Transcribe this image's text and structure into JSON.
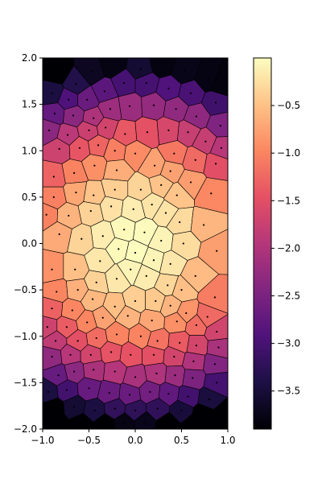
{
  "chart_data": {
    "type": "heatmap",
    "subtype": "voronoi",
    "title": "",
    "xlabel": "",
    "ylabel": "",
    "xlim": [
      -1,
      1
    ],
    "ylim": [
      -2,
      2
    ],
    "xticks": [
      "−1.0",
      "−0.5",
      "0.0",
      "0.5",
      "1.0"
    ],
    "xtick_values": [
      -1,
      -0.5,
      0,
      0.5,
      1
    ],
    "yticks": [
      "−2.0",
      "−1.5",
      "−1.0",
      "−0.5",
      "0.0",
      "0.5",
      "1.0",
      "1.5",
      "2.0"
    ],
    "ytick_values": [
      -2,
      -1.5,
      -1,
      -0.5,
      0,
      0.5,
      1,
      1.5,
      2
    ],
    "colorbar": {
      "colormap": "magma",
      "range": [
        -3.9,
        0
      ],
      "ticks": [
        "−3.5",
        "−3.0",
        "−2.5",
        "−2.0",
        "−1.5",
        "−1.0",
        "−0.5"
      ],
      "tick_values": [
        -3.5,
        -3,
        -2.5,
        -2,
        -1.5,
        -1,
        -0.5
      ]
    },
    "value_function": "-(x^2 + y^2)",
    "grid": false,
    "points": [
      [
        -0.85,
        1.85
      ],
      [
        -0.64,
        1.72
      ],
      [
        -0.47,
        1.86
      ],
      [
        -0.25,
        1.93
      ],
      [
        0.06,
        1.88
      ],
      [
        0.29,
        1.93
      ],
      [
        0.53,
        1.86
      ],
      [
        0.79,
        1.78
      ],
      [
        0.93,
        1.72
      ],
      [
        -0.9,
        1.62
      ],
      [
        -0.72,
        1.55
      ],
      [
        -0.52,
        1.55
      ],
      [
        -0.33,
        1.64
      ],
      [
        -0.12,
        1.73
      ],
      [
        0.12,
        1.73
      ],
      [
        0.36,
        1.67
      ],
      [
        0.6,
        1.62
      ],
      [
        0.87,
        1.52
      ],
      [
        -0.87,
        1.4
      ],
      [
        -0.67,
        1.38
      ],
      [
        -0.45,
        1.35
      ],
      [
        -0.27,
        1.45
      ],
      [
        -0.06,
        1.48
      ],
      [
        0.2,
        1.49
      ],
      [
        0.44,
        1.45
      ],
      [
        0.66,
        1.37
      ],
      [
        0.92,
        1.27
      ],
      [
        -0.93,
        1.22
      ],
      [
        -0.73,
        1.17
      ],
      [
        -0.5,
        1.22
      ],
      [
        -0.32,
        1.25
      ],
      [
        -0.11,
        1.18
      ],
      [
        0.13,
        1.2
      ],
      [
        0.36,
        1.22
      ],
      [
        0.57,
        1.2
      ],
      [
        0.76,
        1.1
      ],
      [
        0.93,
        1.03
      ],
      [
        -0.82,
        1.02
      ],
      [
        -0.6,
        1.03
      ],
      [
        -0.4,
        1.06
      ],
      [
        -0.22,
        1.0
      ],
      [
        0.0,
        0.97
      ],
      [
        0.21,
        0.84
      ],
      [
        0.42,
        0.97
      ],
      [
        0.65,
        0.9
      ],
      [
        0.87,
        0.86
      ],
      [
        -0.88,
        0.72
      ],
      [
        -0.66,
        0.76
      ],
      [
        -0.44,
        0.84
      ],
      [
        -0.2,
        0.79
      ],
      [
        0.38,
        0.78
      ],
      [
        0.6,
        0.66
      ],
      [
        -0.88,
        0.5
      ],
      [
        -0.64,
        0.55
      ],
      [
        -0.45,
        0.52
      ],
      [
        -0.22,
        0.58
      ],
      [
        0.06,
        0.58
      ],
      [
        0.28,
        0.63
      ],
      [
        0.45,
        0.52
      ],
      [
        0.82,
        0.54
      ],
      [
        -0.96,
        0.31
      ],
      [
        -0.72,
        0.3
      ],
      [
        -0.48,
        0.35
      ],
      [
        -0.26,
        0.4
      ],
      [
        -0.02,
        0.37
      ],
      [
        0.18,
        0.42
      ],
      [
        0.33,
        0.33
      ],
      [
        0.48,
        0.23
      ],
      [
        0.74,
        0.2
      ],
      [
        -0.82,
        0.1
      ],
      [
        -0.58,
        0.05
      ],
      [
        -0.35,
        0.08
      ],
      [
        -0.12,
        0.15
      ],
      [
        0.1,
        0.12
      ],
      [
        0.28,
        0.03
      ],
      [
        0.52,
        0.0
      ],
      [
        0.88,
        -0.08
      ],
      [
        -0.9,
        -0.28
      ],
      [
        -0.65,
        -0.28
      ],
      [
        -0.38,
        -0.19
      ],
      [
        -0.18,
        -0.06
      ],
      [
        0.0,
        -0.1
      ],
      [
        0.2,
        -0.18
      ],
      [
        0.38,
        -0.22
      ],
      [
        0.65,
        -0.35
      ],
      [
        -0.85,
        -0.52
      ],
      [
        -0.62,
        -0.5
      ],
      [
        -0.42,
        -0.42
      ],
      [
        -0.2,
        -0.38
      ],
      [
        -0.05,
        -0.28
      ],
      [
        0.12,
        -0.35
      ],
      [
        0.35,
        -0.45
      ],
      [
        0.5,
        -0.5
      ],
      [
        0.86,
        -0.58
      ],
      [
        -0.9,
        -0.7
      ],
      [
        -0.68,
        -0.72
      ],
      [
        -0.46,
        -0.6
      ],
      [
        -0.22,
        -0.68
      ],
      [
        0.0,
        -0.62
      ],
      [
        0.22,
        -0.62
      ],
      [
        0.38,
        -0.67
      ],
      [
        0.55,
        -0.75
      ],
      [
        0.78,
        -0.79
      ],
      [
        -0.95,
        -0.9
      ],
      [
        -0.74,
        -0.9
      ],
      [
        -0.52,
        -0.85
      ],
      [
        -0.35,
        -0.8
      ],
      [
        -0.08,
        -0.78
      ],
      [
        0.18,
        -0.83
      ],
      [
        0.45,
        -0.84
      ],
      [
        0.66,
        -0.88
      ],
      [
        0.88,
        -0.95
      ],
      [
        -0.86,
        -1.05
      ],
      [
        -0.62,
        -1.05
      ],
      [
        -0.42,
        -1.02
      ],
      [
        -0.2,
        -0.98
      ],
      [
        0.06,
        -1.0
      ],
      [
        0.24,
        -1.05
      ],
      [
        0.48,
        -1.07
      ],
      [
        0.66,
        -1.1
      ],
      [
        0.9,
        -1.12
      ],
      [
        -0.9,
        -1.22
      ],
      [
        -0.7,
        -1.2
      ],
      [
        -0.48,
        -1.2
      ],
      [
        -0.26,
        -1.17
      ],
      [
        -0.05,
        -1.2
      ],
      [
        0.2,
        -1.2
      ],
      [
        0.42,
        -1.22
      ],
      [
        0.63,
        -1.27
      ],
      [
        0.86,
        -1.3
      ],
      [
        -0.83,
        -1.42
      ],
      [
        -0.66,
        -1.38
      ],
      [
        -0.45,
        -1.36
      ],
      [
        -0.22,
        -1.38
      ],
      [
        0.0,
        -1.44
      ],
      [
        0.23,
        -1.4
      ],
      [
        0.43,
        -1.42
      ],
      [
        0.62,
        -1.45
      ],
      [
        0.88,
        -1.5
      ],
      [
        -0.94,
        -1.6
      ],
      [
        -0.74,
        -1.58
      ],
      [
        -0.5,
        -1.56
      ],
      [
        -0.28,
        -1.61
      ],
      [
        -0.06,
        -1.63
      ],
      [
        0.16,
        -1.6
      ],
      [
        0.36,
        -1.62
      ],
      [
        0.57,
        -1.65
      ],
      [
        0.8,
        -1.68
      ],
      [
        -0.88,
        -1.78
      ],
      [
        -0.66,
        -1.76
      ],
      [
        -0.44,
        -1.8
      ],
      [
        -0.22,
        -1.78
      ],
      [
        0.0,
        -1.8
      ],
      [
        0.24,
        -1.78
      ],
      [
        0.5,
        -1.8
      ],
      [
        0.74,
        -1.84
      ],
      [
        0.95,
        -1.85
      ],
      [
        -0.85,
        -1.95
      ],
      [
        -0.58,
        -1.95
      ],
      [
        -0.33,
        -1.95
      ],
      [
        -0.12,
        -1.94
      ],
      [
        0.1,
        -1.93
      ],
      [
        0.35,
        -1.95
      ],
      [
        0.63,
        -1.96
      ],
      [
        0.86,
        -1.93
      ]
    ]
  }
}
